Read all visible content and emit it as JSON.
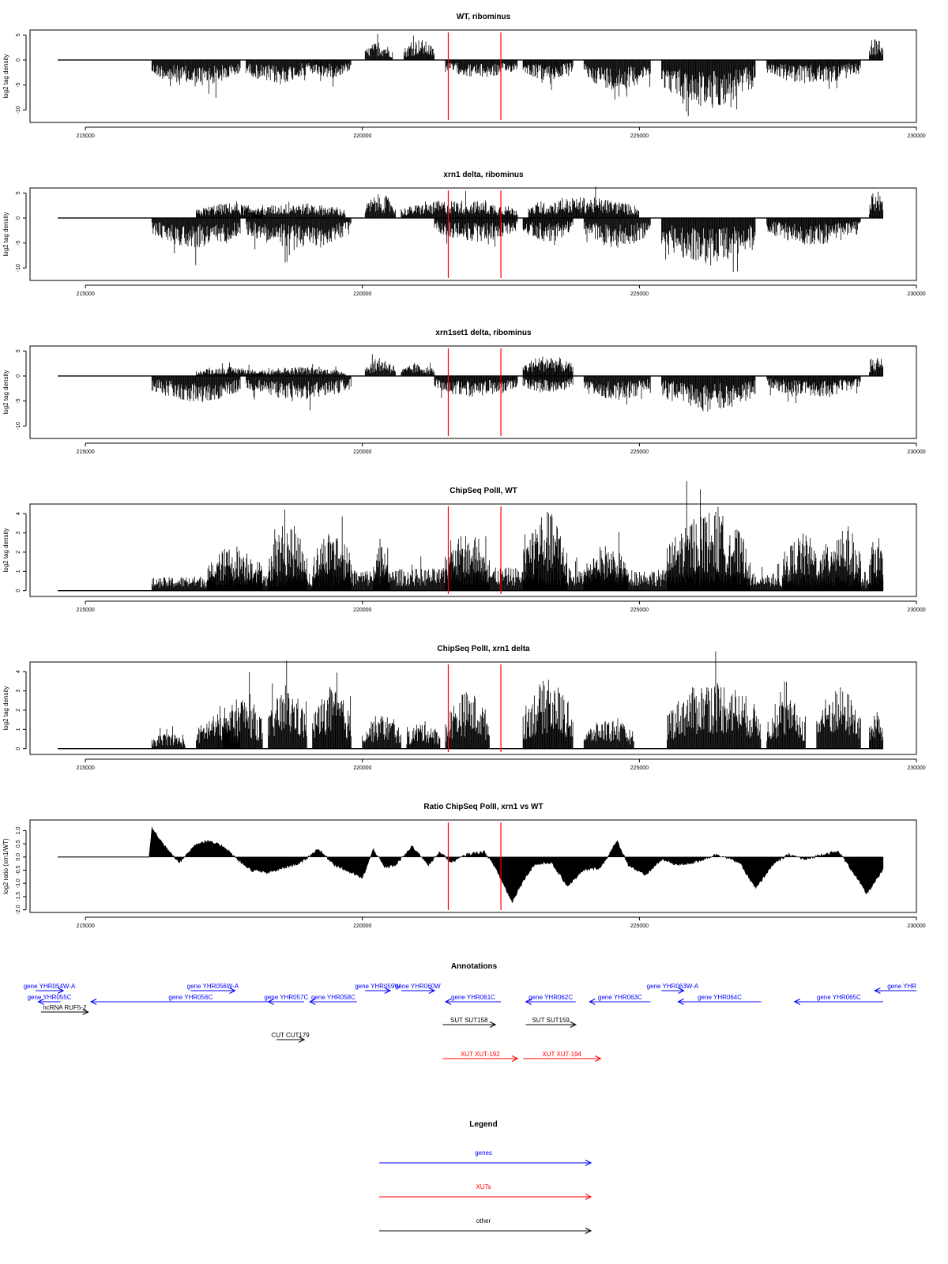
{
  "colors": {
    "gene": "#0000ff",
    "xut": "#ff0000",
    "other": "#000000",
    "highlight": "#ff0000",
    "bars": "#000000"
  },
  "chart_data": [
    {
      "type": "bar",
      "title": "WT, ribominus",
      "ylabel": "log2 tag density",
      "xlim": [
        214000,
        230000
      ],
      "ylim": [
        -12.5,
        6
      ],
      "xticks": [
        215000,
        220000,
        225000,
        230000
      ],
      "yticks": [
        5,
        0,
        -5,
        -10
      ],
      "highlight_x": [
        221550,
        222500
      ],
      "regions": [
        {
          "x": [
            216200,
            217800
          ],
          "y": -4.5
        },
        {
          "x": [
            217900,
            219000
          ],
          "y": -4
        },
        {
          "x": [
            219000,
            219800
          ],
          "y": -3
        },
        {
          "x": [
            220050,
            220550
          ],
          "y": 3
        },
        {
          "x": [
            220750,
            221300
          ],
          "y": 3.5
        },
        {
          "x": [
            221500,
            222800
          ],
          "y": -3
        },
        {
          "x": [
            222900,
            223800
          ],
          "y": -3.5
        },
        {
          "x": [
            224000,
            225200
          ],
          "y": -5
        },
        {
          "x": [
            225400,
            227100
          ],
          "y": -8
        },
        {
          "x": [
            227300,
            229000
          ],
          "y": -4
        },
        {
          "x": [
            229150,
            229400
          ],
          "y": 4
        }
      ]
    },
    {
      "type": "bar",
      "title": "xrn1 delta, ribominus",
      "ylabel": "log2 tag density",
      "xlim": [
        214000,
        230000
      ],
      "ylim": [
        -12.5,
        6
      ],
      "xticks": [
        215000,
        220000,
        225000,
        230000
      ],
      "yticks": [
        5,
        0,
        -5,
        -10
      ],
      "highlight_x": [
        221550,
        222500
      ],
      "regions": [
        {
          "x": [
            216200,
            217800
          ],
          "y": -5
        },
        {
          "x": [
            217000,
            218200
          ],
          "y": 2.5
        },
        {
          "x": [
            217900,
            219800
          ],
          "y": -5
        },
        {
          "x": [
            218000,
            219700
          ],
          "y": 2.5
        },
        {
          "x": [
            220050,
            220600
          ],
          "y": 4
        },
        {
          "x": [
            220700,
            222800
          ],
          "y": 3
        },
        {
          "x": [
            221300,
            222800
          ],
          "y": -4
        },
        {
          "x": [
            222900,
            223800
          ],
          "y": -4
        },
        {
          "x": [
            223000,
            225000
          ],
          "y": 3.5
        },
        {
          "x": [
            224000,
            225200
          ],
          "y": -5
        },
        {
          "x": [
            225400,
            227100
          ],
          "y": -8
        },
        {
          "x": [
            227300,
            229000
          ],
          "y": -4.5
        },
        {
          "x": [
            229150,
            229400
          ],
          "y": 5
        }
      ]
    },
    {
      "type": "bar",
      "title": "xrn1set1 delta, ribominus",
      "ylabel": "log2 tag density",
      "xlim": [
        214000,
        230000
      ],
      "ylim": [
        -12.5,
        6
      ],
      "xticks": [
        215000,
        220000,
        225000,
        230000
      ],
      "yticks": [
        5,
        0,
        -5,
        -10
      ],
      "highlight_x": [
        221550,
        222500
      ],
      "regions": [
        {
          "x": [
            216200,
            217800
          ],
          "y": -4.5
        },
        {
          "x": [
            217000,
            218200
          ],
          "y": 1.5
        },
        {
          "x": [
            217900,
            219800
          ],
          "y": -4
        },
        {
          "x": [
            218000,
            219700
          ],
          "y": 1.5
        },
        {
          "x": [
            220050,
            220600
          ],
          "y": 3
        },
        {
          "x": [
            220700,
            221300
          ],
          "y": 2
        },
        {
          "x": [
            221300,
            222800
          ],
          "y": -3.5
        },
        {
          "x": [
            222900,
            223800
          ],
          "y": 3.5
        },
        {
          "x": [
            222900,
            223800
          ],
          "y": -3
        },
        {
          "x": [
            224000,
            225200
          ],
          "y": -4
        },
        {
          "x": [
            225400,
            227100
          ],
          "y": -6
        },
        {
          "x": [
            227300,
            229000
          ],
          "y": -3.5
        },
        {
          "x": [
            229150,
            229400
          ],
          "y": 4
        }
      ]
    },
    {
      "type": "bar",
      "title": "ChipSeq PolII, WT",
      "ylabel": "log2 tag density",
      "xlim": [
        214000,
        230000
      ],
      "ylim": [
        -0.3,
        4.5
      ],
      "xticks": [
        215000,
        220000,
        225000,
        230000
      ],
      "yticks": [
        4,
        3,
        2,
        1,
        0
      ],
      "highlight_x": [
        221550,
        222500
      ],
      "regions": [
        {
          "x": [
            216200,
            229400
          ],
          "y": 1
        },
        {
          "x": [
            217200,
            218200
          ],
          "y": 2
        },
        {
          "x": [
            218300,
            219000
          ],
          "y": 3
        },
        {
          "x": [
            219100,
            219800
          ],
          "y": 2.7
        },
        {
          "x": [
            220200,
            220500
          ],
          "y": 2.5
        },
        {
          "x": [
            221500,
            222300
          ],
          "y": 2.5
        },
        {
          "x": [
            222900,
            223700
          ],
          "y": 3.5
        },
        {
          "x": [
            224000,
            224800
          ],
          "y": 2
        },
        {
          "x": [
            225500,
            227000
          ],
          "y": 3.5
        },
        {
          "x": [
            227600,
            228300
          ],
          "y": 2.5
        },
        {
          "x": [
            228300,
            229000
          ],
          "y": 3
        },
        {
          "x": [
            229150,
            229400
          ],
          "y": 2.5
        }
      ]
    },
    {
      "type": "bar",
      "title": "ChipSeq PolII, xrn1 delta",
      "ylabel": "log2 tag density",
      "xlim": [
        214000,
        230000
      ],
      "ylim": [
        -0.3,
        4.5
      ],
      "xticks": [
        215000,
        220000,
        225000,
        230000
      ],
      "yticks": [
        4,
        3,
        2,
        1,
        0
      ],
      "highlight_x": [
        221550,
        222500
      ],
      "regions": [
        {
          "x": [
            216200,
            216800
          ],
          "y": 0.7
        },
        {
          "x": [
            217000,
            217800
          ],
          "y": 1.5
        },
        {
          "x": [
            217500,
            218200
          ],
          "y": 2.3
        },
        {
          "x": [
            218300,
            219000
          ],
          "y": 2.6
        },
        {
          "x": [
            219100,
            219800
          ],
          "y": 2.6
        },
        {
          "x": [
            220000,
            220700
          ],
          "y": 1.5
        },
        {
          "x": [
            220800,
            221400
          ],
          "y": 1.2
        },
        {
          "x": [
            221500,
            222300
          ],
          "y": 2.5
        },
        {
          "x": [
            222900,
            223800
          ],
          "y": 3
        },
        {
          "x": [
            224000,
            224900
          ],
          "y": 1.3
        },
        {
          "x": [
            225500,
            227200
          ],
          "y": 3
        },
        {
          "x": [
            227300,
            228000
          ],
          "y": 2.2
        },
        {
          "x": [
            228200,
            229000
          ],
          "y": 2.7
        },
        {
          "x": [
            229150,
            229400
          ],
          "y": 1.7
        }
      ]
    },
    {
      "type": "area",
      "title": "Ratio ChipSeq PolII, xrn1 vs WT",
      "ylabel": "log2 ratio (xrn1/WT)",
      "xlim": [
        214000,
        230000
      ],
      "ylim": [
        -2.1,
        1.4
      ],
      "xticks": [
        215000,
        220000,
        225000,
        230000
      ],
      "yticks": [
        1,
        0.5,
        0,
        -0.5,
        -1,
        -1.5,
        -2
      ],
      "ytick_labels": [
        "1.0",
        "0.5",
        "0.0",
        "-0.5",
        "-1.0",
        "-1.5",
        "-2.0"
      ],
      "highlight_x": [
        221550,
        222500
      ],
      "x": [
        216150,
        216200,
        216400,
        216700,
        217000,
        217200,
        217500,
        217800,
        218000,
        218300,
        218600,
        218900,
        219200,
        219500,
        219800,
        220000,
        220200,
        220400,
        220600,
        220900,
        221200,
        221400,
        221600,
        221900,
        222200,
        222400,
        222700,
        222900,
        223100,
        223400,
        223700,
        224000,
        224300,
        224600,
        224800,
        225100,
        225400,
        225700,
        226000,
        226400,
        226800,
        227100,
        227400,
        227700,
        228000,
        228300,
        228600,
        228900,
        229100,
        229300,
        229400
      ],
      "y": [
        0,
        1.1,
        0.5,
        -0.2,
        0.5,
        0.6,
        0.4,
        -0.2,
        -0.5,
        -0.6,
        -0.4,
        -0.2,
        0.3,
        -0.3,
        -0.6,
        -0.8,
        0.3,
        -0.4,
        -0.3,
        0.4,
        -0.3,
        0.2,
        -0.2,
        0.1,
        0.2,
        -0.4,
        -1.7,
        -0.9,
        -0.3,
        -0.2,
        -1.1,
        -0.5,
        -0.4,
        0.6,
        -0.3,
        -0.7,
        -0.1,
        -0.3,
        -0.2,
        0.1,
        -0.2,
        -1.2,
        -0.3,
        0.1,
        -0.1,
        0.1,
        0.2,
        -0.7,
        -1.4,
        -0.8,
        -0.5
      ]
    }
  ],
  "annotations": {
    "title": "Annotations",
    "features": [
      {
        "label": "gene YHR054W-A",
        "kind": "gene",
        "start": 214100,
        "end": 214600,
        "row": 0,
        "strand": "+"
      },
      {
        "label": "gene YHR055C",
        "kind": "gene",
        "start": 214150,
        "end": 214550,
        "row": 1,
        "strand": "-"
      },
      {
        "label": "ncRNA RUF5-2",
        "kind": "other",
        "start": 214200,
        "end": 215050,
        "row": 2,
        "strand": "+"
      },
      {
        "label": "gene YHR056C",
        "kind": "gene",
        "start": 215100,
        "end": 218700,
        "row": 1,
        "strand": "-"
      },
      {
        "label": "gene YHR056W-A",
        "kind": "gene",
        "start": 216900,
        "end": 217700,
        "row": 0,
        "strand": "+"
      },
      {
        "label": "gene YHR057C",
        "kind": "gene",
        "start": 218300,
        "end": 218950,
        "row": 1,
        "strand": "-"
      },
      {
        "label": "gene YHR058C",
        "kind": "gene",
        "start": 219050,
        "end": 219900,
        "row": 1,
        "strand": "-"
      },
      {
        "label": "gene YHR059W",
        "kind": "gene",
        "start": 220050,
        "end": 220500,
        "row": 0,
        "strand": "+"
      },
      {
        "label": "gene YHR060W",
        "kind": "gene",
        "start": 220700,
        "end": 221300,
        "row": 0,
        "strand": "+"
      },
      {
        "label": "gene YHR061C",
        "kind": "gene",
        "start": 221500,
        "end": 222500,
        "row": 1,
        "strand": "-"
      },
      {
        "label": "gene YHR062C",
        "kind": "gene",
        "start": 222950,
        "end": 223850,
        "row": 1,
        "strand": "-"
      },
      {
        "label": "gene YHR063C",
        "kind": "gene",
        "start": 224100,
        "end": 225200,
        "row": 1,
        "strand": "-"
      },
      {
        "label": "gene YHR063W-A",
        "kind": "gene",
        "start": 225400,
        "end": 225800,
        "row": 0,
        "strand": "+"
      },
      {
        "label": "gene YHR064C",
        "kind": "gene",
        "start": 225700,
        "end": 227200,
        "row": 1,
        "strand": "-"
      },
      {
        "label": "gene YHR065C",
        "kind": "gene",
        "start": 227800,
        "end": 229400,
        "row": 1,
        "strand": "-"
      },
      {
        "label": "gene YHR",
        "kind": "gene",
        "start": 229250,
        "end": 230000,
        "row": 0,
        "strand": "-",
        "label_align": "end"
      },
      {
        "label": "SUT SUT158",
        "kind": "other",
        "start": 221450,
        "end": 222400,
        "row": 3,
        "strand": "+"
      },
      {
        "label": "SUT SUT159",
        "kind": "other",
        "start": 222950,
        "end": 223850,
        "row": 3,
        "strand": "+"
      },
      {
        "label": "CUT CUT179",
        "kind": "other",
        "start": 218450,
        "end": 218950,
        "row": 4,
        "strand": "+"
      },
      {
        "label": "XUT XUT-192",
        "kind": "xut",
        "start": 221450,
        "end": 222800,
        "row": 5,
        "strand": "+"
      },
      {
        "label": "XUT XUT-194",
        "kind": "xut",
        "start": 222900,
        "end": 224300,
        "row": 5,
        "strand": "+"
      }
    ]
  },
  "legend": {
    "title": "Legend",
    "items": [
      {
        "label": "genes",
        "kind": "gene"
      },
      {
        "label": "XUTs",
        "kind": "xut"
      },
      {
        "label": "other",
        "kind": "other"
      }
    ]
  }
}
